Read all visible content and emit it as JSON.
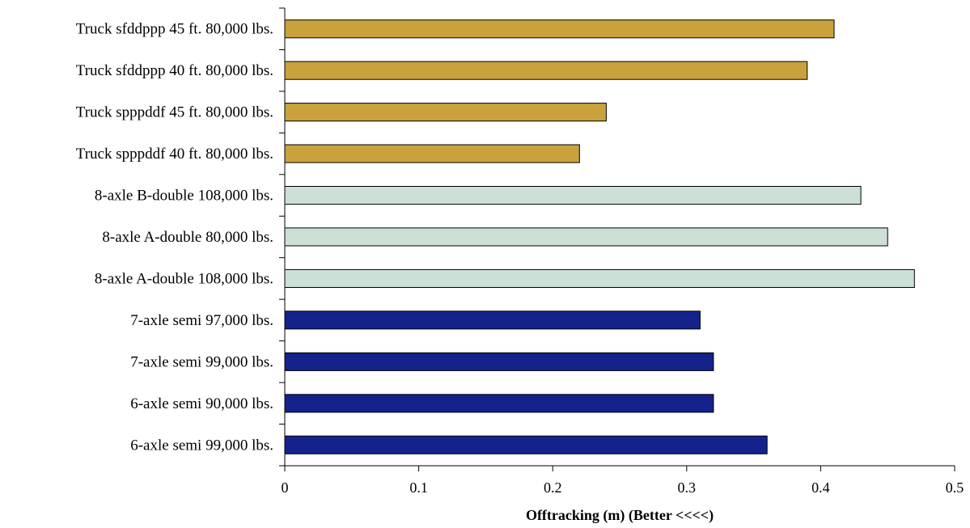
{
  "chart_data": {
    "type": "bar",
    "orientation": "horizontal",
    "title": "",
    "xlabel": "Offtracking (m) (Better <<<<)",
    "ylabel": "",
    "xlim": [
      0,
      0.5
    ],
    "xticks": [
      0,
      0.1,
      0.2,
      0.3,
      0.4,
      0.5
    ],
    "xtick_labels": [
      "0",
      "0.1",
      "0.2",
      "0.3",
      "0.4",
      "0.5"
    ],
    "grid": false,
    "legend": "none",
    "categories": [
      "Truck sfddppp 45 ft. 80,000 lbs.",
      "Truck sfddppp 40 ft. 80,000 lbs.",
      "Truck spppddf 45 ft. 80,000 lbs.",
      "Truck spppddf 40 ft. 80,000 lbs.",
      "8-axle B-double 108,000 lbs.",
      "8-axle A-double 80,000 lbs.",
      "8-axle A-double 108,000 lbs.",
      "7-axle semi 97,000 lbs.",
      "7-axle semi 99,000 lbs.",
      "6-axle semi 90,000 lbs.",
      "6-axle semi 99,000 lbs."
    ],
    "values": [
      0.41,
      0.39,
      0.24,
      0.22,
      0.43,
      0.45,
      0.47,
      0.31,
      0.32,
      0.32,
      0.36
    ],
    "bar_colors": [
      "#C9A23C",
      "#C9A23C",
      "#C9A23C",
      "#C9A23C",
      "#CCE0D6",
      "#CCE0D6",
      "#CCE0D6",
      "#14228C",
      "#14228C",
      "#14228C",
      "#14228C"
    ]
  }
}
